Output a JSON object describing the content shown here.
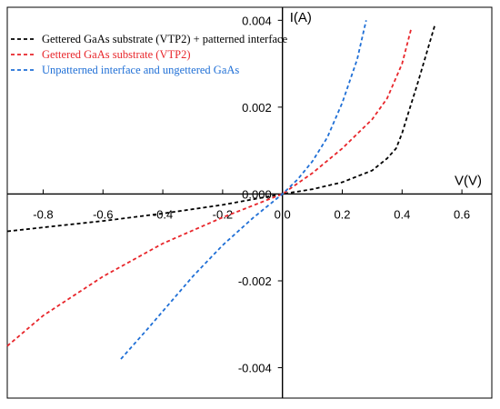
{
  "chart_data": {
    "type": "line",
    "title": "",
    "xlabel": "V(V)",
    "ylabel": "I(A)",
    "xlim": [
      -0.92,
      0.7
    ],
    "ylim": [
      -0.0047,
      0.0043
    ],
    "xticks": [
      -0.8,
      -0.6,
      -0.4,
      -0.2,
      0.0,
      0.2,
      0.4,
      0.6
    ],
    "xtick_labels": [
      "-0.8",
      "-0.6",
      "-0.4",
      "-0.2",
      "0.0",
      "0.2",
      "0.4",
      "0.6"
    ],
    "yticks": [
      -0.004,
      -0.002,
      0.0,
      0.002,
      0.004
    ],
    "ytick_labels": [
      "-0.004",
      "-0.002",
      "0.000",
      "0.002",
      "0.004"
    ],
    "grid": false,
    "legend_position": "top-left",
    "series": [
      {
        "name": "Gettered GaAs substrate (VTP2) + patterned interface",
        "color": "#000000",
        "style": "dashed",
        "x": [
          -0.92,
          -0.8,
          -0.6,
          -0.4,
          -0.2,
          0.0,
          0.1,
          0.2,
          0.3,
          0.35,
          0.38,
          0.4,
          0.42,
          0.45,
          0.48,
          0.51
        ],
        "y": [
          -0.00086,
          -0.00077,
          -0.00062,
          -0.00045,
          -0.00025,
          0.0,
          0.00011,
          0.00027,
          0.00054,
          0.00082,
          0.00105,
          0.0014,
          0.00185,
          0.0025,
          0.0032,
          0.0039
        ]
      },
      {
        "name": "Gettered GaAs substrate (VTP2)",
        "color": "#e8262b",
        "style": "dashed",
        "x": [
          -0.92,
          -0.8,
          -0.6,
          -0.4,
          -0.2,
          0.0,
          0.1,
          0.2,
          0.3,
          0.35,
          0.4,
          0.43
        ],
        "y": [
          -0.0035,
          -0.0028,
          -0.0019,
          -0.00114,
          -0.00054,
          0.0,
          0.00048,
          0.00105,
          0.00172,
          0.0022,
          0.003,
          0.0038
        ]
      },
      {
        "name": "Unpatterned interface and ungettered GaAs",
        "color": "#1f6fd6",
        "style": "dashed",
        "x": [
          -0.54,
          -0.45,
          -0.3,
          -0.2,
          -0.1,
          0.0,
          0.05,
          0.1,
          0.15,
          0.2,
          0.25,
          0.28
        ],
        "y": [
          -0.0038,
          -0.0031,
          -0.0019,
          -0.00118,
          -0.00056,
          0.0,
          0.00033,
          0.00075,
          0.0013,
          0.0021,
          0.0031,
          0.004
        ]
      }
    ]
  }
}
